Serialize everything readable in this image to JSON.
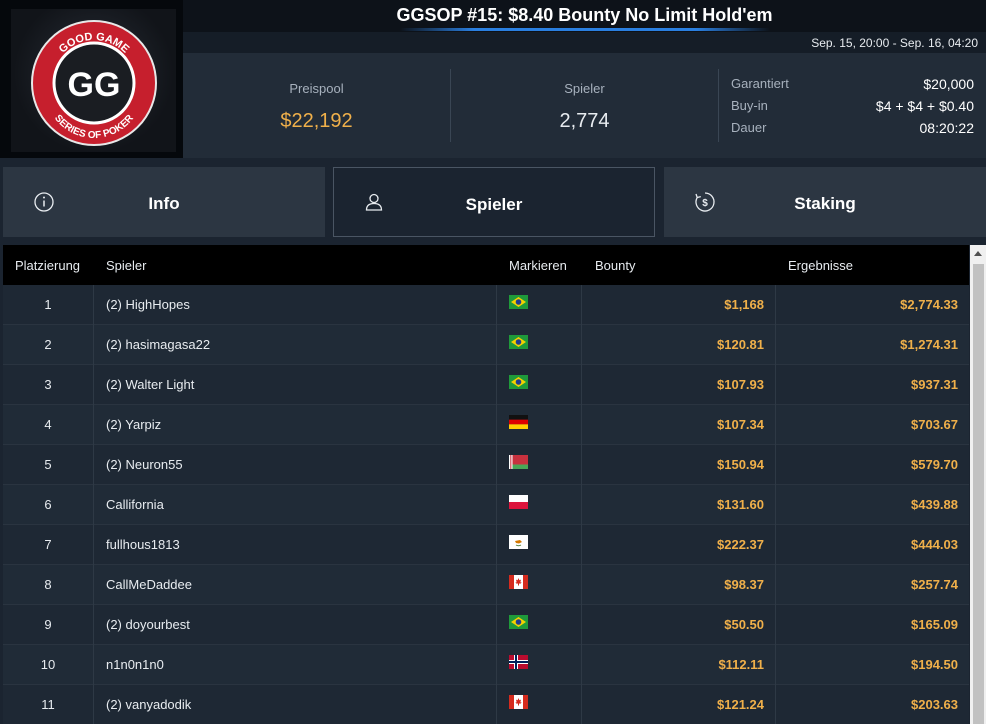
{
  "header": {
    "title": "GGSOP #15: $8.40 Bounty No Limit Hold'em",
    "date_range": "Sep. 15, 20:00 - Sep. 16, 04:20"
  },
  "logo": {
    "top_text": "GOOD GAME",
    "bottom_text": "SERIES OF POKER",
    "mark": "GG"
  },
  "stats": {
    "prizepool_label": "Preispool",
    "prizepool_value": "$22,192",
    "players_label": "Spieler",
    "players_value": "2,774",
    "info": [
      {
        "key": "Garantiert",
        "value": "$20,000"
      },
      {
        "key": "Buy-in",
        "value": "$4 + $4 + $0.40"
      },
      {
        "key": "Dauer",
        "value": "08:20:22"
      }
    ]
  },
  "tabs": {
    "info": "Info",
    "players": "Spieler",
    "staking": "Staking"
  },
  "table": {
    "headers": {
      "place": "Platzierung",
      "player": "Spieler",
      "mark": "Markieren",
      "bounty": "Bounty",
      "results": "Ergebnisse"
    },
    "rows": [
      {
        "place": "1",
        "name": "(2) HighHopes",
        "flag": "brazil-flag",
        "bounty": "$1,168",
        "result": "$2,774.33"
      },
      {
        "place": "2",
        "name": "(2) hasimagasa22",
        "flag": "brazil-flag",
        "bounty": "$120.81",
        "result": "$1,274.31"
      },
      {
        "place": "3",
        "name": "(2) Walter Light",
        "flag": "brazil-flag",
        "bounty": "$107.93",
        "result": "$937.31"
      },
      {
        "place": "4",
        "name": "(2) Yarpiz",
        "flag": "germany-flag",
        "bounty": "$107.34",
        "result": "$703.67"
      },
      {
        "place": "5",
        "name": "(2) Neuron55",
        "flag": "belarus-flag",
        "bounty": "$150.94",
        "result": "$579.70"
      },
      {
        "place": "6",
        "name": "Callifornia",
        "flag": "poland-flag",
        "bounty": "$131.60",
        "result": "$439.88"
      },
      {
        "place": "7",
        "name": "fullhous1813",
        "flag": "cyprus-flag",
        "bounty": "$222.37",
        "result": "$444.03"
      },
      {
        "place": "8",
        "name": "CallMeDaddee",
        "flag": "canada-flag",
        "bounty": "$98.37",
        "result": "$257.74"
      },
      {
        "place": "9",
        "name": "(2) doyourbest",
        "flag": "brazil-flag",
        "bounty": "$50.50",
        "result": "$165.09"
      },
      {
        "place": "10",
        "name": "n1n0n1n0",
        "flag": "norway-flag",
        "bounty": "$112.11",
        "result": "$194.50"
      },
      {
        "place": "11",
        "name": "(2) vanyadodik",
        "flag": "canada-flag",
        "bounty": "$121.24",
        "result": "$203.63"
      }
    ]
  },
  "colors": {
    "accent_gold": "#f0b04a",
    "logo_red": "#d42a36",
    "title_underline": "#2a7fe0"
  }
}
